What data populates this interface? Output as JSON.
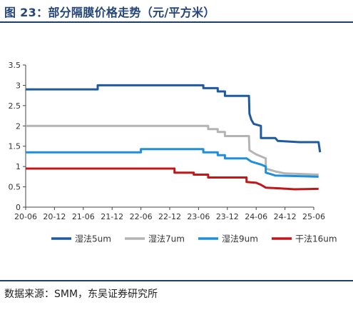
{
  "page": {
    "title": "图 23：部分隔膜价格走势（元/平方米）",
    "source": "数据来源：SMM，东吴证券研究所"
  },
  "chart_data": {
    "type": "line",
    "title": "图 23：部分隔膜价格走势（元/平方米）",
    "xlabel": "",
    "ylabel": "",
    "x_ticks": [
      "20-06",
      "20-12",
      "21-06",
      "21-12",
      "22-06",
      "22-12",
      "23-06",
      "23-12",
      "24-06",
      "24-12",
      "25-06"
    ],
    "y_ticks": [
      0,
      0.5,
      1,
      1.5,
      2,
      2.5,
      3,
      3.5
    ],
    "y_tick_labels": [
      "0",
      "0.5",
      "1",
      "1.5",
      "2",
      "2.5",
      "3",
      "3.5"
    ],
    "ylim": [
      0,
      3.5
    ],
    "xlim": [
      0,
      60
    ],
    "grid": false,
    "legend_position": "bottom",
    "series": [
      {
        "name": "湿法5um",
        "color": "#1f5aa0",
        "points": [
          [
            0,
            2.9
          ],
          [
            15,
            2.9
          ],
          [
            15,
            3.0
          ],
          [
            37,
            3.0
          ],
          [
            37,
            2.93
          ],
          [
            40,
            2.93
          ],
          [
            40,
            2.85
          ],
          [
            41.5,
            2.85
          ],
          [
            41.5,
            2.74
          ],
          [
            46.5,
            2.74
          ],
          [
            46.6,
            2.3
          ],
          [
            47,
            2.15
          ],
          [
            47.5,
            2.05
          ],
          [
            49,
            2.0
          ],
          [
            49,
            1.7
          ],
          [
            52,
            1.7
          ],
          [
            52.5,
            1.63
          ],
          [
            57,
            1.6
          ],
          [
            61,
            1.6
          ],
          [
            61.3,
            1.35
          ]
        ]
      },
      {
        "name": "湿法7um",
        "color": "#b4b4b4",
        "points": [
          [
            0,
            2.0
          ],
          [
            38,
            2.0
          ],
          [
            38,
            1.92
          ],
          [
            40,
            1.92
          ],
          [
            40,
            1.85
          ],
          [
            41.5,
            1.85
          ],
          [
            41.5,
            1.75
          ],
          [
            46.5,
            1.75
          ],
          [
            46.6,
            1.4
          ],
          [
            48,
            1.3
          ],
          [
            50,
            1.2
          ],
          [
            50,
            0.95
          ],
          [
            52,
            0.88
          ],
          [
            54,
            0.83
          ],
          [
            61,
            0.8
          ]
        ]
      },
      {
        "name": "湿法9um",
        "color": "#1e8fd8",
        "points": [
          [
            0,
            1.35
          ],
          [
            24,
            1.35
          ],
          [
            24,
            1.43
          ],
          [
            37,
            1.43
          ],
          [
            37,
            1.35
          ],
          [
            40,
            1.35
          ],
          [
            40,
            1.28
          ],
          [
            41.5,
            1.28
          ],
          [
            41.5,
            1.2
          ],
          [
            46,
            1.2
          ],
          [
            47,
            1.12
          ],
          [
            49,
            1.05
          ],
          [
            50,
            1.0
          ],
          [
            50,
            0.85
          ],
          [
            52,
            0.78
          ],
          [
            61,
            0.75
          ]
        ]
      },
      {
        "name": "干法16um",
        "color": "#c01818",
        "points": [
          [
            0,
            0.95
          ],
          [
            31,
            0.95
          ],
          [
            31,
            0.85
          ],
          [
            35,
            0.85
          ],
          [
            35,
            0.8
          ],
          [
            38,
            0.8
          ],
          [
            38,
            0.73
          ],
          [
            46,
            0.73
          ],
          [
            46,
            0.62
          ],
          [
            48,
            0.6
          ],
          [
            49,
            0.55
          ],
          [
            50,
            0.48
          ],
          [
            53,
            0.46
          ],
          [
            56,
            0.44
          ],
          [
            61,
            0.45
          ]
        ]
      }
    ]
  }
}
